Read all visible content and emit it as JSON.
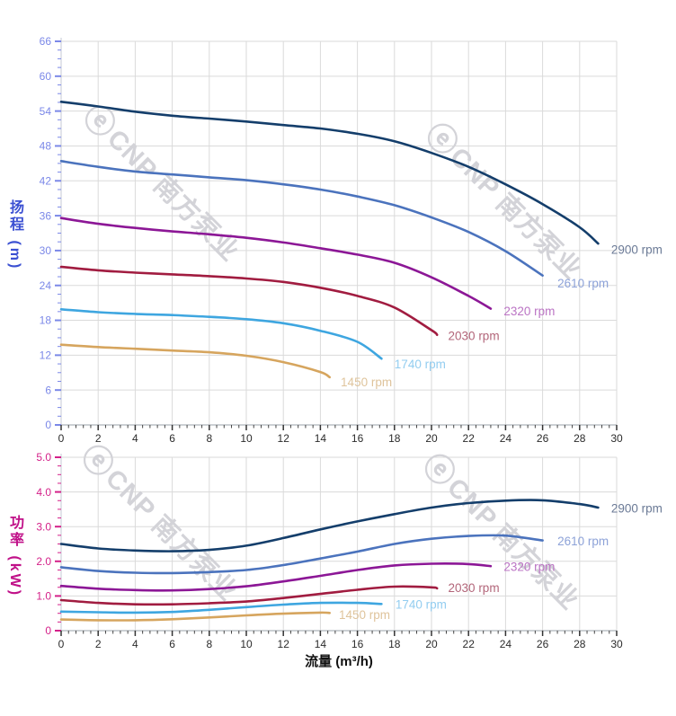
{
  "watermark": {
    "logo": "ⓔ",
    "text": "CNP 南方泵业"
  },
  "chart_data": [
    {
      "type": "line",
      "title": "",
      "ylabel": "扬程 (m)",
      "xlabel": "",
      "xlim": [
        0,
        30
      ],
      "ylim": [
        0,
        66
      ],
      "grid": true,
      "legend_position": "end-of-curve",
      "x_ticks": [
        0,
        2,
        4,
        6,
        8,
        10,
        12,
        14,
        16,
        18,
        20,
        22,
        24,
        26,
        28,
        30
      ],
      "x_tick_labels": [
        "0",
        "2",
        "4",
        "6",
        "8",
        "10",
        "12",
        "14",
        "16",
        "18",
        "20",
        "22",
        "24",
        "26",
        "28",
        "30"
      ],
      "x_minor_step": 0.4,
      "y_ticks": [
        0,
        6,
        12,
        18,
        24,
        30,
        36,
        42,
        48,
        54,
        60,
        66
      ],
      "y_tick_labels": [
        "0",
        "6",
        "12",
        "18",
        "24",
        "30",
        "36",
        "42",
        "48",
        "54",
        "60",
        "66"
      ],
      "y_minor_step": 1.5,
      "axis_color": "#7b88e8",
      "series": [
        {
          "name": "2900 rpm",
          "color": "#143e6b",
          "label_color": "#6b7a96",
          "label_at": [
            29.7,
            30.2
          ],
          "x": [
            0,
            2,
            4,
            6,
            8,
            10,
            12,
            14,
            16,
            18,
            20,
            22,
            24,
            26,
            28,
            29
          ],
          "y": [
            55.6,
            54.8,
            53.9,
            53.2,
            52.7,
            52.2,
            51.6,
            51.0,
            50.1,
            48.8,
            46.8,
            44.4,
            41.4,
            38.0,
            34.0,
            31.2
          ]
        },
        {
          "name": "2610 rpm",
          "color": "#4b73bd",
          "label_color": "#8da2d8",
          "label_at": [
            26.8,
            24.4
          ],
          "x": [
            0,
            2,
            4,
            6,
            8,
            10,
            12,
            14,
            16,
            18,
            20,
            22,
            24,
            26
          ],
          "y": [
            45.4,
            44.4,
            43.6,
            43.1,
            42.6,
            42.1,
            41.4,
            40.5,
            39.3,
            37.8,
            35.7,
            33.2,
            29.9,
            25.7
          ]
        },
        {
          "name": "2320 rpm",
          "color": "#8c1796",
          "label_color": "#bb74c4",
          "label_at": [
            23.9,
            19.6
          ],
          "x": [
            0,
            2,
            4,
            6,
            8,
            10,
            12,
            14,
            16,
            18,
            20,
            22,
            23.2
          ],
          "y": [
            35.6,
            34.6,
            33.9,
            33.3,
            32.8,
            32.2,
            31.4,
            30.4,
            29.3,
            27.9,
            25.4,
            22.2,
            20.0
          ]
        },
        {
          "name": "2030 rpm",
          "color": "#a11c40",
          "label_color": "#b26579",
          "label_at": [
            20.9,
            15.3
          ],
          "x": [
            0,
            2,
            4,
            6,
            8,
            10,
            12,
            14,
            16,
            18,
            20,
            20.3
          ],
          "y": [
            27.2,
            26.6,
            26.2,
            25.9,
            25.6,
            25.2,
            24.6,
            23.6,
            22.2,
            20.2,
            16.3,
            15.5
          ]
        },
        {
          "name": "1740 rpm",
          "color": "#3ea6e0",
          "label_color": "#93cdf0",
          "label_at": [
            18.0,
            10.5
          ],
          "x": [
            0,
            2,
            4,
            6,
            8,
            10,
            12,
            14,
            16,
            17.3
          ],
          "y": [
            19.9,
            19.4,
            19.1,
            18.9,
            18.6,
            18.2,
            17.5,
            16.2,
            14.3,
            11.4
          ]
        },
        {
          "name": "1450 rpm",
          "color": "#d6a55e",
          "label_color": "#dfc49c",
          "label_at": [
            15.1,
            7.4
          ],
          "x": [
            0,
            2,
            4,
            6,
            8,
            10,
            12,
            14,
            14.5
          ],
          "y": [
            13.8,
            13.4,
            13.1,
            12.8,
            12.5,
            11.9,
            10.8,
            9.1,
            8.2
          ]
        }
      ]
    },
    {
      "type": "line",
      "title": "",
      "ylabel": "功率 (kW)",
      "xlabel": "流量 (m³/h)",
      "xlim": [
        0,
        30
      ],
      "ylim": [
        0,
        5.0
      ],
      "grid": true,
      "legend_position": "end-of-curve",
      "x_ticks": [
        0,
        2,
        4,
        6,
        8,
        10,
        12,
        14,
        16,
        18,
        20,
        22,
        24,
        26,
        28,
        30
      ],
      "x_tick_labels": [
        "0",
        "2",
        "4",
        "6",
        "8",
        "10",
        "12",
        "14",
        "16",
        "18",
        "20",
        "22",
        "24",
        "26",
        "28",
        "30"
      ],
      "x_minor_step": 0.4,
      "y_ticks": [
        0,
        1,
        2,
        3,
        4,
        5
      ],
      "y_tick_labels": [
        "0",
        "1.0",
        "2.0",
        "3.0",
        "4.0",
        "5.0"
      ],
      "y_minor_step": 0.25,
      "axis_color": "#d42189",
      "series": [
        {
          "name": "2900 rpm",
          "color": "#143e6b",
          "label_color": "#6b7a96",
          "label_at": [
            29.7,
            3.53
          ],
          "x": [
            0,
            2,
            4,
            6,
            8,
            10,
            12,
            14,
            16,
            18,
            20,
            22,
            24,
            26,
            28,
            29
          ],
          "y": [
            2.5,
            2.37,
            2.31,
            2.29,
            2.33,
            2.45,
            2.67,
            2.92,
            3.15,
            3.36,
            3.55,
            3.68,
            3.75,
            3.76,
            3.65,
            3.55
          ]
        },
        {
          "name": "2610 rpm",
          "color": "#4b73bd",
          "label_color": "#8da2d8",
          "label_at": [
            26.8,
            2.59
          ],
          "x": [
            0,
            2,
            4,
            6,
            8,
            10,
            12,
            14,
            16,
            18,
            20,
            22,
            24,
            26
          ],
          "y": [
            1.83,
            1.72,
            1.67,
            1.66,
            1.69,
            1.75,
            1.89,
            2.08,
            2.28,
            2.5,
            2.65,
            2.73,
            2.74,
            2.6
          ]
        },
        {
          "name": "2320 rpm",
          "color": "#8c1796",
          "label_color": "#bb74c4",
          "label_at": [
            23.9,
            1.85
          ],
          "x": [
            0,
            2,
            4,
            6,
            8,
            10,
            12,
            14,
            16,
            18,
            20,
            22,
            23.2
          ],
          "y": [
            1.29,
            1.21,
            1.17,
            1.16,
            1.2,
            1.28,
            1.42,
            1.58,
            1.75,
            1.88,
            1.93,
            1.92,
            1.86
          ]
        },
        {
          "name": "2030 rpm",
          "color": "#a11c40",
          "label_color": "#b26579",
          "label_at": [
            20.9,
            1.24
          ],
          "x": [
            0,
            2,
            4,
            6,
            8,
            10,
            12,
            14,
            16,
            18,
            20,
            20.3
          ],
          "y": [
            0.88,
            0.8,
            0.76,
            0.76,
            0.79,
            0.84,
            0.94,
            1.06,
            1.18,
            1.27,
            1.25,
            1.22
          ]
        },
        {
          "name": "1740 rpm",
          "color": "#3ea6e0",
          "label_color": "#93cdf0",
          "label_at": [
            18.05,
            0.76
          ],
          "x": [
            0,
            2,
            4,
            6,
            8,
            10,
            12,
            14,
            16,
            17.3
          ],
          "y": [
            0.55,
            0.53,
            0.52,
            0.54,
            0.6,
            0.68,
            0.75,
            0.8,
            0.8,
            0.77
          ]
        },
        {
          "name": "1450 rpm",
          "color": "#d6a55e",
          "label_color": "#dfc49c",
          "label_at": [
            15.0,
            0.46
          ],
          "x": [
            0,
            2,
            4,
            6,
            8,
            10,
            12,
            14,
            14.5
          ],
          "y": [
            0.32,
            0.3,
            0.3,
            0.33,
            0.38,
            0.44,
            0.49,
            0.52,
            0.51
          ]
        }
      ]
    }
  ]
}
